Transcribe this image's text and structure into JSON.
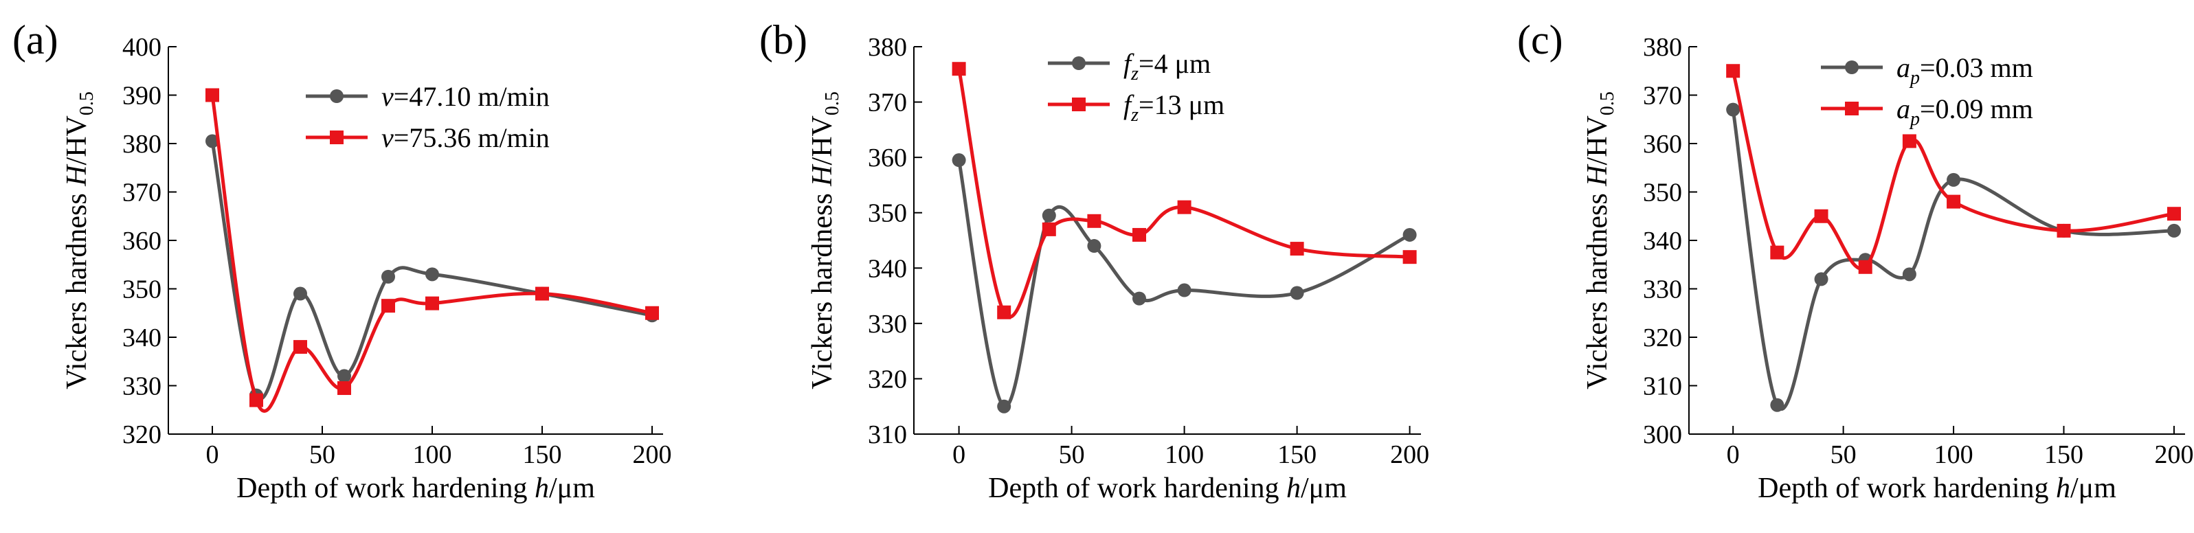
{
  "colors": {
    "series1": "#555555",
    "series2": "#e8141b",
    "axis": "#000000"
  },
  "chart_data": [
    {
      "type": "line",
      "panel_label": "(a)",
      "xlabel_main": "Depth of work hardening ",
      "xlabel_var": "h",
      "xlabel_unit": "/μm",
      "ylabel_main": "Vickers hardness ",
      "ylabel_var": "H",
      "ylabel_unit": "/HV",
      "ylabel_sub": "0.5",
      "xlim": [
        -20,
        205
      ],
      "ylim": [
        320,
        400
      ],
      "xticks": [
        0,
        50,
        100,
        150,
        200
      ],
      "yticks": [
        320,
        330,
        340,
        350,
        360,
        370,
        380,
        390,
        400
      ],
      "grid": false,
      "legend_position": "top-right",
      "series": [
        {
          "name_var": "v",
          "name_sub": "",
          "name_rest": "=47.10 m/min",
          "marker": "circle",
          "x": [
            0,
            20,
            40,
            60,
            80,
            100,
            150,
            200
          ],
          "y": [
            380.5,
            328,
            349,
            332,
            352.5,
            353,
            349,
            344.5
          ]
        },
        {
          "name_var": "v",
          "name_sub": "",
          "name_rest": "=75.36 m/min",
          "marker": "square",
          "x": [
            0,
            20,
            40,
            60,
            80,
            100,
            150,
            200
          ],
          "y": [
            390,
            327,
            338,
            329.5,
            346.5,
            347,
            349,
            345
          ]
        }
      ]
    },
    {
      "type": "line",
      "panel_label": "(b)",
      "xlabel_main": "Depth of work hardening ",
      "xlabel_var": "h",
      "xlabel_unit": "/μm",
      "ylabel_main": "Vickers hardness ",
      "ylabel_var": "H",
      "ylabel_unit": "/HV",
      "ylabel_sub": "0.5",
      "xlim": [
        -20,
        205
      ],
      "ylim": [
        310,
        380
      ],
      "xticks": [
        0,
        50,
        100,
        150,
        200
      ],
      "yticks": [
        310,
        320,
        330,
        340,
        350,
        360,
        370,
        380
      ],
      "grid": false,
      "legend_position": "top-right",
      "series": [
        {
          "name_var": "f",
          "name_sub": "z",
          "name_rest": "=4 μm",
          "marker": "circle",
          "x": [
            0,
            20,
            40,
            60,
            80,
            100,
            150,
            200
          ],
          "y": [
            359.5,
            315,
            349.5,
            344,
            334.5,
            336,
            335.5,
            346
          ]
        },
        {
          "name_var": "f",
          "name_sub": "z",
          "name_rest": "=13 μm",
          "marker": "square",
          "x": [
            0,
            20,
            40,
            60,
            80,
            100,
            150,
            200
          ],
          "y": [
            376,
            332,
            347,
            348.5,
            346,
            351,
            343.5,
            342
          ]
        }
      ]
    },
    {
      "type": "line",
      "panel_label": "(c)",
      "xlabel_main": "Depth of work hardening ",
      "xlabel_var": "h",
      "xlabel_unit": "/μm",
      "ylabel_main": "Vickers hardness ",
      "ylabel_var": "H",
      "ylabel_unit": "/HV",
      "ylabel_sub": "0.5",
      "xlim": [
        -20,
        205
      ],
      "ylim": [
        300,
        380
      ],
      "xticks": [
        0,
        50,
        100,
        150,
        200
      ],
      "yticks": [
        300,
        310,
        320,
        330,
        340,
        350,
        360,
        370,
        380
      ],
      "grid": false,
      "legend_position": "top-right",
      "series": [
        {
          "name_var": "a",
          "name_sub": "p",
          "name_rest": "=0.03 mm",
          "marker": "circle",
          "x": [
            0,
            20,
            40,
            60,
            80,
            100,
            150,
            200
          ],
          "y": [
            367,
            306,
            332,
            336,
            333,
            352.5,
            342,
            342
          ]
        },
        {
          "name_var": "a",
          "name_sub": "p",
          "name_rest": "=0.09 mm",
          "marker": "square",
          "x": [
            0,
            20,
            40,
            60,
            80,
            100,
            150,
            200
          ],
          "y": [
            375,
            337.5,
            345,
            334.5,
            360.5,
            348,
            342,
            345.5
          ]
        }
      ]
    }
  ]
}
